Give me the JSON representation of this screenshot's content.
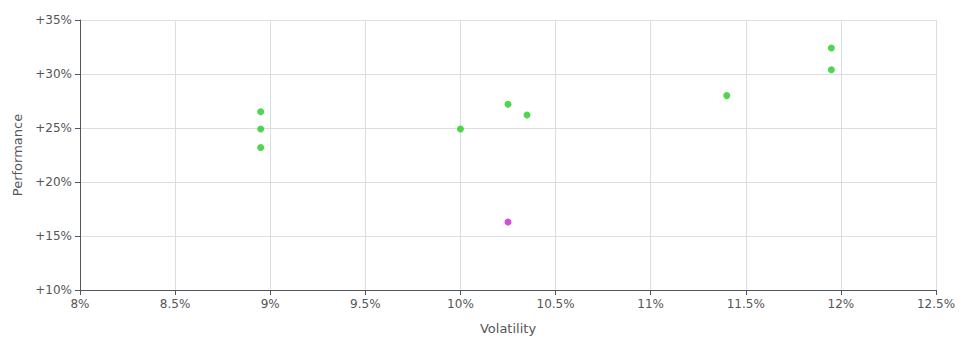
{
  "chart_data": {
    "type": "scatter",
    "xlabel": "Volatility",
    "ylabel": "Performance",
    "series": [
      {
        "color": "#22cc22",
        "x": [
          0.0895,
          0.0895,
          0.0895,
          0.1,
          0.1025,
          0.1035,
          0.114,
          0.1195,
          0.1195
        ],
        "values": [
          0.265,
          0.249,
          0.232,
          0.249,
          0.272,
          0.262,
          0.28,
          0.324,
          0.304
        ]
      },
      {
        "color": "#cc22cc",
        "x": [
          0.1025
        ],
        "values": [
          0.163
        ]
      }
    ],
    "xlim": [
      0.08,
      0.125
    ],
    "ylim": [
      0.1,
      0.35
    ],
    "xticks": [
      {
        "value": 0.08,
        "label": "8%"
      },
      {
        "value": 0.085,
        "label": "8.5%"
      },
      {
        "value": 0.09,
        "label": "9%"
      },
      {
        "value": 0.095,
        "label": "9.5%"
      },
      {
        "value": 0.1,
        "label": "10%"
      },
      {
        "value": 0.105,
        "label": "10.5%"
      },
      {
        "value": 0.11,
        "label": "11%"
      },
      {
        "value": 0.115,
        "label": "11.5%"
      },
      {
        "value": 0.12,
        "label": "12%"
      },
      {
        "value": 0.125,
        "label": "12.5%"
      }
    ],
    "yticks": [
      {
        "value": 0.1,
        "label": "+10%"
      },
      {
        "value": 0.15,
        "label": "+15%"
      },
      {
        "value": 0.2,
        "label": "+20%"
      },
      {
        "value": 0.25,
        "label": "+25%"
      },
      {
        "value": 0.3,
        "label": "+30%"
      },
      {
        "value": 0.35,
        "label": "+35%"
      }
    ],
    "grid": true
  }
}
